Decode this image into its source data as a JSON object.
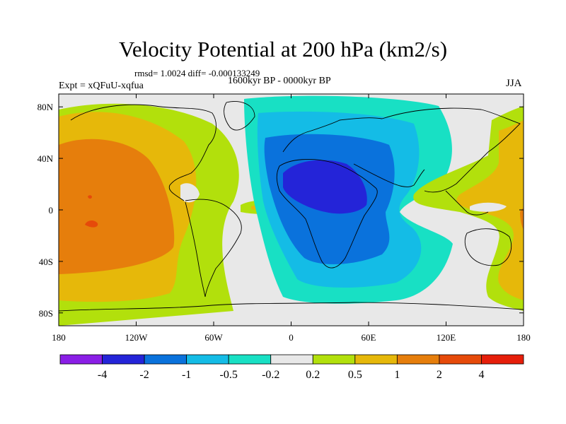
{
  "header": {
    "title": "Velocity Potential at 200 hPa (km2/s)",
    "stats": "rmsd= 1.0024 diff= -0.000133249",
    "period": "1600kyr BP - 0000kyr BP",
    "experiment": "Expt = xQFuU-xqfua",
    "season": "JJA"
  },
  "chart_data": {
    "type": "heatmap",
    "projection": "cylindrical-equidistant",
    "title": "Velocity Potential at 200 hPa (km2/s)",
    "xlim": [
      -180,
      180
    ],
    "ylim": [
      -90,
      90
    ],
    "x_ticks": [
      {
        "value": -180,
        "label": "180"
      },
      {
        "value": -120,
        "label": "120W"
      },
      {
        "value": -60,
        "label": "60W"
      },
      {
        "value": 0,
        "label": "0"
      },
      {
        "value": 60,
        "label": "60E"
      },
      {
        "value": 120,
        "label": "120E"
      },
      {
        "value": 180,
        "label": "180"
      }
    ],
    "y_ticks": [
      {
        "value": 80,
        "label": "80N"
      },
      {
        "value": 40,
        "label": "40N"
      },
      {
        "value": 0,
        "label": "0"
      },
      {
        "value": -40,
        "label": "40S"
      },
      {
        "value": -80,
        "label": "80S"
      }
    ],
    "colorbar": {
      "levels": [
        -4,
        -2,
        -1,
        -0.5,
        -0.2,
        0.2,
        0.5,
        1,
        2,
        4
      ],
      "level_labels": [
        "-4",
        "-2",
        "-1",
        "-0.5",
        "-0.2",
        "0.2",
        "0.5",
        "1",
        "2",
        "4"
      ],
      "colors": [
        "#8a1ee6",
        "#2424d8",
        "#0a72dc",
        "#14bce6",
        "#18e0c4",
        "#e8e8e8",
        "#b2e00c",
        "#e6b80a",
        "#e67e0c",
        "#e64a0a",
        "#e61e0a"
      ]
    },
    "regions": [
      {
        "name": "africa-minimum",
        "level": -2,
        "description": "strongest negative centre over North Africa / Arabia"
      },
      {
        "name": "pacific-maximum",
        "level": 2,
        "description": "positive centre over the eastern tropical Pacific"
      },
      {
        "name": "west-pacific-positive",
        "level": 0.5,
        "description": "positive anomaly over the western Pacific and maritime continent"
      }
    ]
  }
}
